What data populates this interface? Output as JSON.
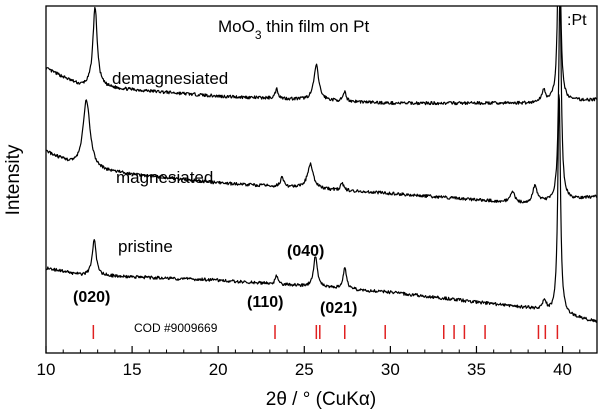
{
  "chart_data": {
    "type": "line",
    "title_parts": [
      "MoO",
      "3",
      " thin film on Pt"
    ],
    "xlabel": "2θ / ° (CuKα)",
    "ylabel": "Intensity",
    "xlim": [
      10,
      42
    ],
    "ylim": [
      0,
      10
    ],
    "x_ticks": [
      10,
      15,
      20,
      25,
      30,
      35,
      40
    ],
    "y_ticks_labeled": false,
    "grid": false,
    "legend": "none",
    "series": [
      {
        "name": "demagnesiated",
        "baseline": [
          [
            10,
            8.2
          ],
          [
            12,
            7.7
          ],
          [
            20,
            7.4
          ],
          [
            30,
            7.2
          ],
          [
            38,
            7.2
          ],
          [
            42,
            7.3
          ]
        ],
        "peaks": [
          [
            12.85,
            2.3,
            0.15
          ],
          [
            23.4,
            0.28,
            0.1
          ],
          [
            25.7,
            1.0,
            0.17
          ],
          [
            27.35,
            0.25,
            0.1
          ],
          [
            38.9,
            0.35,
            0.12
          ],
          [
            39.8,
            6.0,
            0.09
          ]
        ]
      },
      {
        "name": "magnesiated",
        "baseline": [
          [
            10,
            5.8
          ],
          [
            12,
            5.3
          ],
          [
            20,
            4.9
          ],
          [
            30,
            4.6
          ],
          [
            38,
            4.3
          ],
          [
            42,
            4.5
          ]
        ],
        "peaks": [
          [
            12.35,
            2.0,
            0.25
          ],
          [
            23.7,
            0.25,
            0.12
          ],
          [
            25.35,
            0.7,
            0.2
          ],
          [
            27.2,
            0.22,
            0.1
          ],
          [
            37.1,
            0.3,
            0.15
          ],
          [
            38.4,
            0.5,
            0.15
          ],
          [
            39.85,
            6.0,
            0.09
          ]
        ]
      },
      {
        "name": "pristine",
        "baseline": [
          [
            10,
            2.45
          ],
          [
            12,
            2.25
          ],
          [
            20,
            2.1
          ],
          [
            30,
            1.75
          ],
          [
            38,
            1.3
          ],
          [
            42,
            0.9
          ]
        ],
        "peaks": [
          [
            12.8,
            1.05,
            0.13
          ],
          [
            23.4,
            0.25,
            0.1
          ],
          [
            25.65,
            0.9,
            0.13
          ],
          [
            27.35,
            0.6,
            0.12
          ],
          [
            38.95,
            0.3,
            0.12
          ],
          [
            39.8,
            6.5,
            0.09
          ]
        ]
      }
    ],
    "trace_labels": [
      "demagnesiated",
      "magnesiated",
      "pristine"
    ],
    "peak_labels": [
      "(020)",
      "(110)",
      "(040)",
      "(021)"
    ],
    "reference": {
      "label": "COD #9009669",
      "color": "#e02020",
      "positions": [
        12.75,
        23.3,
        25.7,
        25.9,
        27.35,
        29.7,
        33.1,
        33.7,
        34.3,
        35.5,
        38.6,
        39.0,
        39.7
      ]
    },
    "pt_marker_label": ":Pt"
  }
}
